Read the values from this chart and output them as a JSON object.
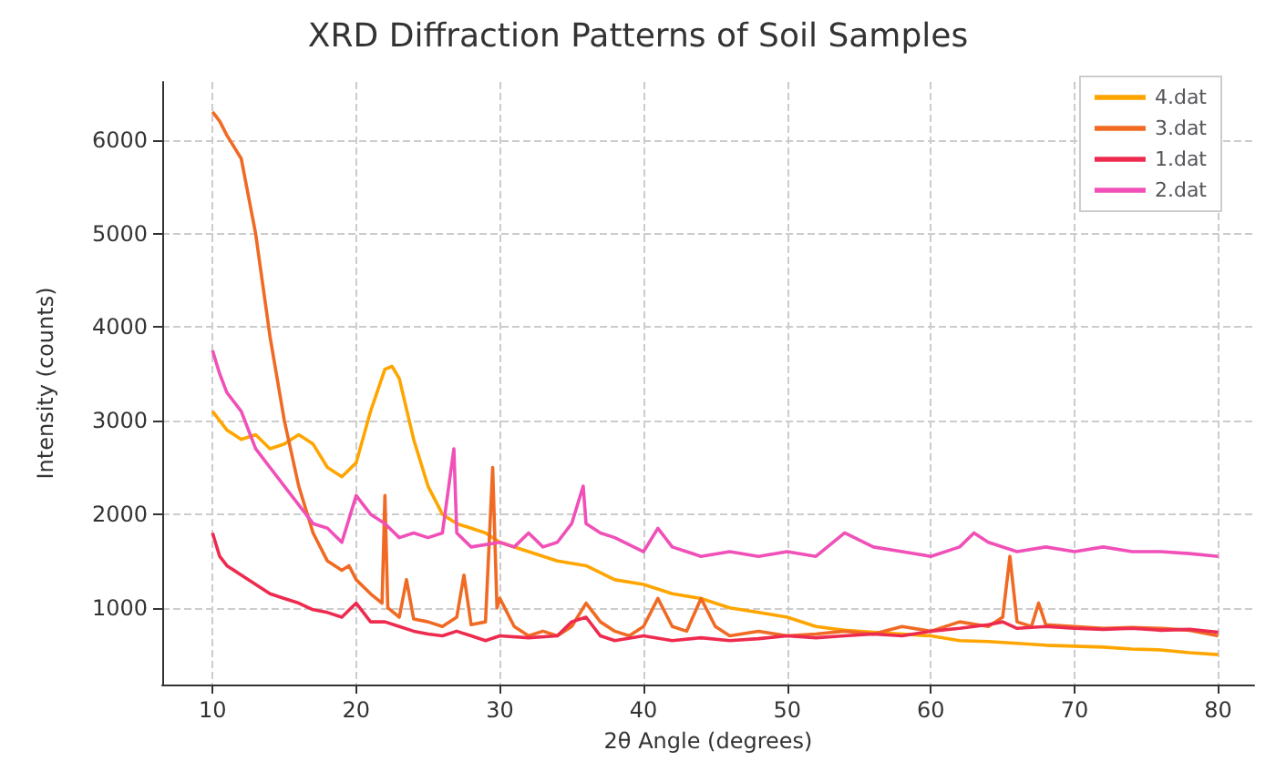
{
  "chart_data": {
    "type": "line",
    "title": "XRD Diffraction Patterns of Soil Samples",
    "xlabel": "2θ Angle (degrees)",
    "ylabel": "Intensity (counts)",
    "xlim": [
      6.5,
      82.5
    ],
    "ylim": [
      180,
      6620
    ],
    "xticks": [
      10,
      20,
      30,
      40,
      50,
      60,
      70,
      80
    ],
    "yticks": [
      1000,
      2000,
      3000,
      4000,
      5000,
      6000
    ],
    "grid": true,
    "legend": "top right",
    "marker": "none",
    "line_style": "solid",
    "series": [
      {
        "name": "4.dat",
        "color": "#ffa500",
        "x": [
          10,
          11,
          12,
          13,
          14,
          15,
          16,
          17,
          18,
          19,
          20,
          21,
          22,
          22.5,
          23,
          24,
          25,
          26,
          27,
          28,
          29,
          30,
          32,
          34,
          36,
          38,
          40,
          42,
          44,
          46,
          48,
          50,
          52,
          54,
          56,
          58,
          60,
          62,
          64,
          66,
          68,
          70,
          72,
          74,
          76,
          78,
          80
        ],
        "values": [
          3100,
          2900,
          2800,
          2850,
          2700,
          2750,
          2850,
          2750,
          2500,
          2400,
          2550,
          3100,
          3550,
          3580,
          3450,
          2800,
          2300,
          2000,
          1900,
          1850,
          1800,
          1700,
          1600,
          1500,
          1450,
          1300,
          1250,
          1150,
          1100,
          1000,
          950,
          900,
          800,
          760,
          740,
          720,
          700,
          650,
          640,
          620,
          600,
          590,
          580,
          560,
          550,
          520,
          500
        ]
      },
      {
        "name": "3.dat",
        "color": "#f06a23",
        "x": [
          10,
          10.5,
          11,
          12,
          13,
          14,
          15,
          16,
          17,
          18,
          19,
          19.5,
          20,
          21,
          21.8,
          22,
          22.2,
          23,
          23.5,
          24,
          25,
          26,
          27,
          27.5,
          28,
          29,
          29.5,
          29.8,
          30,
          31,
          32,
          33,
          34,
          35,
          36,
          37,
          38,
          39,
          40,
          41,
          42,
          43,
          44,
          45,
          46,
          48,
          50,
          52,
          54,
          56,
          58,
          60,
          62,
          64,
          65,
          65.5,
          66,
          67,
          67.5,
          68,
          70,
          72,
          74,
          76,
          78,
          80
        ],
        "values": [
          6300,
          6200,
          6050,
          5800,
          5000,
          3900,
          3000,
          2300,
          1800,
          1500,
          1400,
          1450,
          1300,
          1150,
          1050,
          2200,
          1000,
          900,
          1300,
          880,
          850,
          800,
          900,
          1350,
          820,
          850,
          2500,
          1000,
          1100,
          800,
          700,
          750,
          700,
          800,
          1050,
          850,
          750,
          700,
          800,
          1100,
          800,
          750,
          1100,
          800,
          700,
          750,
          700,
          720,
          750,
          720,
          800,
          750,
          850,
          800,
          900,
          1550,
          850,
          800,
          1050,
          820,
          800,
          780,
          790,
          780,
          760,
          700
        ]
      },
      {
        "name": "1.dat",
        "color": "#ee2b4e",
        "x": [
          10,
          10.5,
          11,
          12,
          13,
          14,
          15,
          16,
          17,
          18,
          19,
          20,
          21,
          22,
          23,
          24,
          25,
          26,
          27,
          28,
          29,
          30,
          32,
          34,
          35,
          36,
          37,
          38,
          40,
          42,
          44,
          46,
          48,
          50,
          52,
          54,
          56,
          58,
          60,
          62,
          64,
          65,
          66,
          68,
          70,
          72,
          74,
          76,
          78,
          80
        ],
        "values": [
          1800,
          1550,
          1450,
          1350,
          1250,
          1150,
          1100,
          1050,
          980,
          950,
          900,
          1050,
          850,
          850,
          800,
          750,
          720,
          700,
          750,
          700,
          650,
          700,
          680,
          700,
          850,
          900,
          700,
          650,
          700,
          650,
          680,
          650,
          670,
          700,
          680,
          700,
          720,
          700,
          750,
          780,
          820,
          850,
          780,
          800,
          780,
          770,
          780,
          760,
          770,
          740
        ]
      },
      {
        "name": "2.dat",
        "color": "#f050b8",
        "x": [
          10,
          10.5,
          11,
          12,
          13,
          14,
          15,
          16,
          17,
          18,
          19,
          20,
          21,
          22,
          23,
          24,
          25,
          26,
          26.8,
          27,
          28,
          30,
          31,
          32,
          33,
          34,
          35,
          35.8,
          36,
          37,
          38,
          40,
          41,
          42,
          44,
          46,
          48,
          50,
          52,
          54,
          56,
          58,
          60,
          62,
          63,
          64,
          66,
          68,
          70,
          72,
          74,
          76,
          78,
          80
        ],
        "values": [
          3750,
          3500,
          3300,
          3100,
          2700,
          2500,
          2300,
          2100,
          1900,
          1850,
          1700,
          2200,
          2000,
          1900,
          1750,
          1800,
          1750,
          1800,
          2700,
          1800,
          1650,
          1700,
          1650,
          1800,
          1650,
          1700,
          1900,
          2300,
          1900,
          1800,
          1750,
          1600,
          1850,
          1650,
          1550,
          1600,
          1550,
          1600,
          1550,
          1800,
          1650,
          1600,
          1550,
          1650,
          1800,
          1700,
          1600,
          1650,
          1600,
          1650,
          1600,
          1600,
          1580,
          1550
        ]
      }
    ]
  }
}
